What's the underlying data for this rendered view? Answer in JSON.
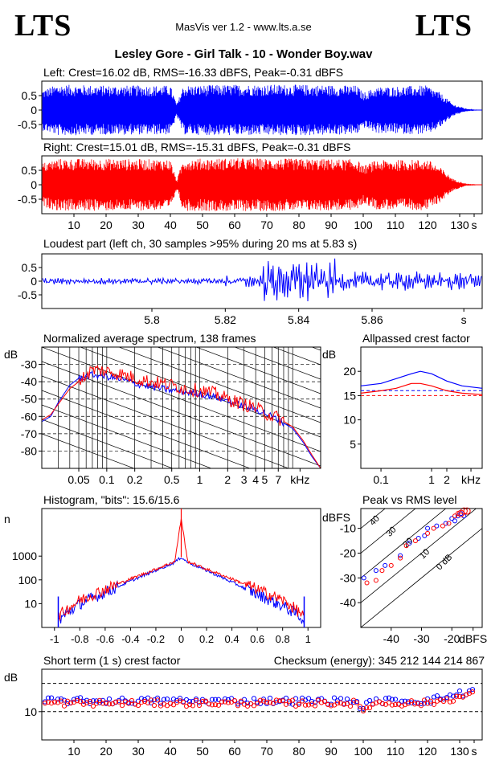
{
  "header": {
    "logo_left": "LTS",
    "logo_right": "LTS",
    "app_title": "MasVis ver 1.2 - www.lts.a.se",
    "file_title": "Lesley Gore - Girl Talk - 10 - Wonder Boy.wav"
  },
  "colors": {
    "left": "#0000ff",
    "right": "#ff0000",
    "axis": "#000000"
  },
  "chart_data": [
    {
      "type": "line",
      "id": "left-waveform",
      "title": "Left: Crest=16.02 dB, RMS=-16.33 dBFS, Peak=-0.31 dBFS",
      "ytick_labels": [
        "0.5",
        "0",
        "-0.5"
      ],
      "yticks": [
        0.5,
        0,
        -0.5
      ],
      "ylim": [
        -1,
        1
      ],
      "xlim": [
        0,
        137
      ],
      "series": [
        {
          "color": "#0000ff",
          "envelope": [
            [
              0,
              0.7
            ],
            [
              5,
              0.88
            ],
            [
              20,
              0.85
            ],
            [
              40,
              0.85
            ],
            [
              42,
              0.2
            ],
            [
              44,
              0.85
            ],
            [
              60,
              0.88
            ],
            [
              80,
              0.88
            ],
            [
              98,
              0.85
            ],
            [
              100,
              0.6
            ],
            [
              104,
              0.8
            ],
            [
              120,
              0.85
            ],
            [
              124,
              0.6
            ],
            [
              128,
              0.2
            ],
            [
              132,
              0.05
            ],
            [
              137,
              0.0
            ]
          ]
        }
      ]
    },
    {
      "type": "line",
      "id": "right-waveform",
      "title": "Right: Crest=15.01 dB, RMS=-15.31 dBFS, Peak=-0.31 dBFS",
      "ytick_labels": [
        "0.5",
        "0",
        "-0.5"
      ],
      "yticks": [
        0.5,
        0,
        -0.5
      ],
      "ylim": [
        -1,
        1
      ],
      "xlim": [
        0,
        137
      ],
      "xtick_labels": [
        "10",
        "20",
        "30",
        "40",
        "50",
        "60",
        "70",
        "80",
        "90",
        "100",
        "110",
        "120",
        "130",
        "s"
      ],
      "xticks": [
        10,
        20,
        30,
        40,
        50,
        60,
        70,
        80,
        90,
        100,
        110,
        120,
        130,
        134.5
      ],
      "series": [
        {
          "color": "#ff0000",
          "envelope": [
            [
              0,
              0.75
            ],
            [
              5,
              0.9
            ],
            [
              20,
              0.9
            ],
            [
              40,
              0.88
            ],
            [
              42,
              0.15
            ],
            [
              44,
              0.9
            ],
            [
              60,
              0.92
            ],
            [
              80,
              0.9
            ],
            [
              98,
              0.88
            ],
            [
              100,
              0.65
            ],
            [
              104,
              0.85
            ],
            [
              120,
              0.88
            ],
            [
              124,
              0.6
            ],
            [
              128,
              0.2
            ],
            [
              132,
              0.04
            ],
            [
              137,
              0.0
            ]
          ]
        }
      ]
    },
    {
      "type": "line",
      "id": "loudest-part",
      "title": "Loudest part (left  ch, 30 samples >95% during 20 ms at 5.83 s)",
      "ytick_labels": [
        "0.5",
        "0",
        "-0.5"
      ],
      "yticks": [
        0.5,
        0,
        -0.5
      ],
      "ylim": [
        -1,
        1
      ],
      "xlim": [
        5.77,
        5.89
      ],
      "xtick_labels": [
        "5.8",
        "5.82",
        "5.84",
        "5.86",
        "s"
      ],
      "xticks": [
        5.8,
        5.82,
        5.84,
        5.86,
        5.885
      ],
      "series": [
        {
          "color": "#0000ff",
          "segments": [
            {
              "from": 5.77,
              "to": 5.82,
              "amp": 0.12
            },
            {
              "from": 5.82,
              "to": 5.83,
              "amp": 0.25
            },
            {
              "from": 5.83,
              "to": 5.85,
              "amp": 0.8
            },
            {
              "from": 5.85,
              "to": 5.89,
              "amp": 0.35
            }
          ]
        }
      ]
    },
    {
      "type": "line",
      "id": "avg-spectrum",
      "title": "Normalized average spectrum, 138 frames",
      "ylabel": "dB",
      "xlabel": "kHz",
      "ytick_labels": [
        "-30",
        "-40",
        "-50",
        "-60",
        "-70",
        "-80"
      ],
      "yticks": [
        -30,
        -40,
        -50,
        -60,
        -70,
        -80
      ],
      "ylim": [
        -90,
        -20
      ],
      "xtick_labels": [
        "0.05",
        "0.1",
        "0.2",
        "0.5",
        "1",
        "2",
        "3",
        "4",
        "5",
        "7",
        "kHz"
      ],
      "xticks": [
        0.05,
        0.1,
        0.2,
        0.5,
        1,
        2,
        3,
        4,
        5,
        7,
        12
      ],
      "xscale": "log",
      "xlim": [
        0.02,
        20
      ],
      "series": [
        {
          "color": "#0000ff",
          "x": [
            0.02,
            0.025,
            0.03,
            0.04,
            0.05,
            0.07,
            0.1,
            0.15,
            0.2,
            0.3,
            0.5,
            0.7,
            1,
            1.5,
            2,
            3,
            4,
            5,
            7,
            10,
            13,
            16,
            20
          ],
          "y": [
            -63,
            -60,
            -52,
            -42,
            -38,
            -36,
            -37,
            -39,
            -41,
            -43,
            -45,
            -46,
            -47,
            -49,
            -51,
            -54,
            -56,
            -58,
            -62,
            -67,
            -75,
            -83,
            -90
          ]
        },
        {
          "color": "#ff0000",
          "x": [
            0.02,
            0.025,
            0.03,
            0.04,
            0.05,
            0.07,
            0.1,
            0.15,
            0.2,
            0.3,
            0.5,
            0.7,
            1,
            1.5,
            2,
            3,
            4,
            5,
            7,
            10,
            13,
            16,
            20
          ],
          "y": [
            -62,
            -59,
            -53,
            -44,
            -40,
            -33,
            -34,
            -36,
            -38,
            -40,
            -42,
            -44,
            -45,
            -47,
            -50,
            -53,
            -55,
            -58,
            -61,
            -66,
            -74,
            -82,
            -90
          ]
        }
      ]
    },
    {
      "type": "line",
      "id": "allpassed-crest",
      "title": "Allpassed crest factor",
      "ylabel": "dB",
      "xlabel": "kHz",
      "ytick_labels": [
        "20",
        "15",
        "10",
        "5"
      ],
      "yticks": [
        20,
        15,
        10,
        5
      ],
      "ylim": [
        0,
        25
      ],
      "xtick_labels": [
        "0.1",
        "1",
        "2",
        "kHz"
      ],
      "xticks": [
        0.1,
        1,
        2,
        6
      ],
      "xscale": "log",
      "xlim": [
        0.04,
        10
      ],
      "reference_lines": [
        {
          "color": "#0000ff",
          "y": 16.02
        },
        {
          "color": "#ff0000",
          "y": 15.01
        }
      ],
      "series": [
        {
          "color": "#0000ff",
          "x": [
            0.04,
            0.1,
            0.2,
            0.4,
            0.6,
            1,
            2,
            4,
            10
          ],
          "y": [
            17,
            17.5,
            18.5,
            19.5,
            20,
            19.5,
            18,
            17,
            16.5
          ]
        },
        {
          "color": "#ff0000",
          "x": [
            0.04,
            0.1,
            0.2,
            0.4,
            0.6,
            1,
            2,
            4,
            10
          ],
          "y": [
            15.5,
            16,
            16.5,
            17.5,
            17.5,
            17,
            16,
            15.5,
            15.2
          ]
        }
      ]
    },
    {
      "type": "line",
      "id": "histogram",
      "title": "Histogram, \"bits\": 15.6/15.6",
      "ylabel": "n",
      "ytick_labels": [
        "1000",
        "100",
        "10"
      ],
      "yticks": [
        1000,
        100,
        10
      ],
      "yscale": "log",
      "ylim": [
        1,
        100000
      ],
      "xtick_labels": [
        "-1",
        "-0.8",
        "-0.6",
        "-0.4",
        "-0.2",
        "0",
        "0.2",
        "0.4",
        "0.6",
        "0.8",
        "1"
      ],
      "xticks": [
        -1,
        -0.8,
        -0.6,
        -0.4,
        -0.2,
        0,
        0.2,
        0.4,
        0.6,
        0.8,
        1
      ],
      "xlim": [
        -1.1,
        1.1
      ],
      "series": [
        {
          "color": "#0000ff",
          "x": [
            -0.97,
            -0.9,
            -0.8,
            -0.6,
            -0.4,
            -0.2,
            -0.05,
            0,
            0.05,
            0.2,
            0.4,
            0.6,
            0.8,
            0.9,
            0.97
          ],
          "y": [
            2,
            4,
            10,
            30,
            90,
            250,
            550,
            900,
            550,
            250,
            80,
            25,
            8,
            4,
            2
          ]
        },
        {
          "color": "#ff0000",
          "x": [
            -0.97,
            -0.9,
            -0.8,
            -0.6,
            -0.4,
            -0.2,
            -0.05,
            0,
            0.05,
            0.2,
            0.4,
            0.6,
            0.8,
            0.9,
            0.97
          ],
          "y": [
            3,
            6,
            14,
            40,
            110,
            280,
            600,
            40000,
            600,
            280,
            110,
            40,
            14,
            6,
            3
          ]
        }
      ]
    },
    {
      "type": "scatter",
      "id": "peak-vs-rms",
      "title": "Peak vs RMS level",
      "ylabel": "dBFS",
      "xlabel": "dBFS",
      "ytick_labels": [
        "-10",
        "-20",
        "-30",
        "-40"
      ],
      "yticks": [
        -10,
        -20,
        -30,
        -40
      ],
      "xtick_labels": [
        "-40",
        "-30",
        "-20",
        "dBFS"
      ],
      "xticks": [
        -40,
        -30,
        -20,
        -13
      ],
      "xlim": [
        -50,
        -10
      ],
      "ylim": [
        -50,
        -2
      ],
      "diagonal_labels": [
        "40",
        "30",
        "20",
        "10",
        "0 dB"
      ],
      "series": [
        {
          "color": "#0000ff",
          "points": [
            [
              -49,
              -30
            ],
            [
              -45,
              -27
            ],
            [
              -42,
              -25
            ],
            [
              -37,
              -21
            ],
            [
              -34,
              -16
            ],
            [
              -31,
              -14
            ],
            [
              -29,
              -13
            ],
            [
              -28,
              -10
            ],
            [
              -25,
              -9
            ],
            [
              -22,
              -8
            ],
            [
              -20,
              -6
            ],
            [
              -19,
              -7
            ],
            [
              -18,
              -5
            ],
            [
              -17,
              -4
            ],
            [
              -16,
              -5
            ]
          ]
        },
        {
          "color": "#ff0000",
          "points": [
            [
              -48,
              -32
            ],
            [
              -45,
              -31
            ],
            [
              -43,
              -27
            ],
            [
              -40,
              -25
            ],
            [
              -37,
              -22
            ],
            [
              -35,
              -17
            ],
            [
              -32,
              -15
            ],
            [
              -28,
              -12
            ],
            [
              -26,
              -10
            ],
            [
              -23,
              -9
            ],
            [
              -21,
              -8
            ],
            [
              -19,
              -5
            ],
            [
              -18,
              -4
            ],
            [
              -17,
              -4
            ],
            [
              -16,
              -3
            ],
            [
              -15,
              -3
            ]
          ]
        }
      ]
    },
    {
      "type": "scatter",
      "id": "short-term-crest",
      "title": "Short term (1 s) crest factor",
      "checksum": "Checksum (energy):   345 212 144 214 867",
      "ylabel": "dB",
      "ytick_labels": [
        "10"
      ],
      "yticks": [
        10
      ],
      "ylim": [
        0,
        25
      ],
      "xlim": [
        0,
        137
      ],
      "dashed_lines": [
        20,
        10
      ],
      "xtick_labels": [
        "10",
        "20",
        "30",
        "40",
        "50",
        "60",
        "70",
        "80",
        "90",
        "100",
        "110",
        "120",
        "130",
        "s"
      ],
      "xticks": [
        10,
        20,
        30,
        40,
        50,
        60,
        70,
        80,
        90,
        100,
        110,
        120,
        130,
        134.5
      ],
      "series": [
        {
          "color": "#0000ff",
          "base": 13.8,
          "spread": 1.2,
          "dip_at": 100,
          "dip": -2.5,
          "rise_end": 3.5
        },
        {
          "color": "#ff0000",
          "base": 13.0,
          "spread": 1.1,
          "dip_at": 100,
          "dip": -2.5,
          "rise_end": 3.0
        }
      ]
    }
  ]
}
